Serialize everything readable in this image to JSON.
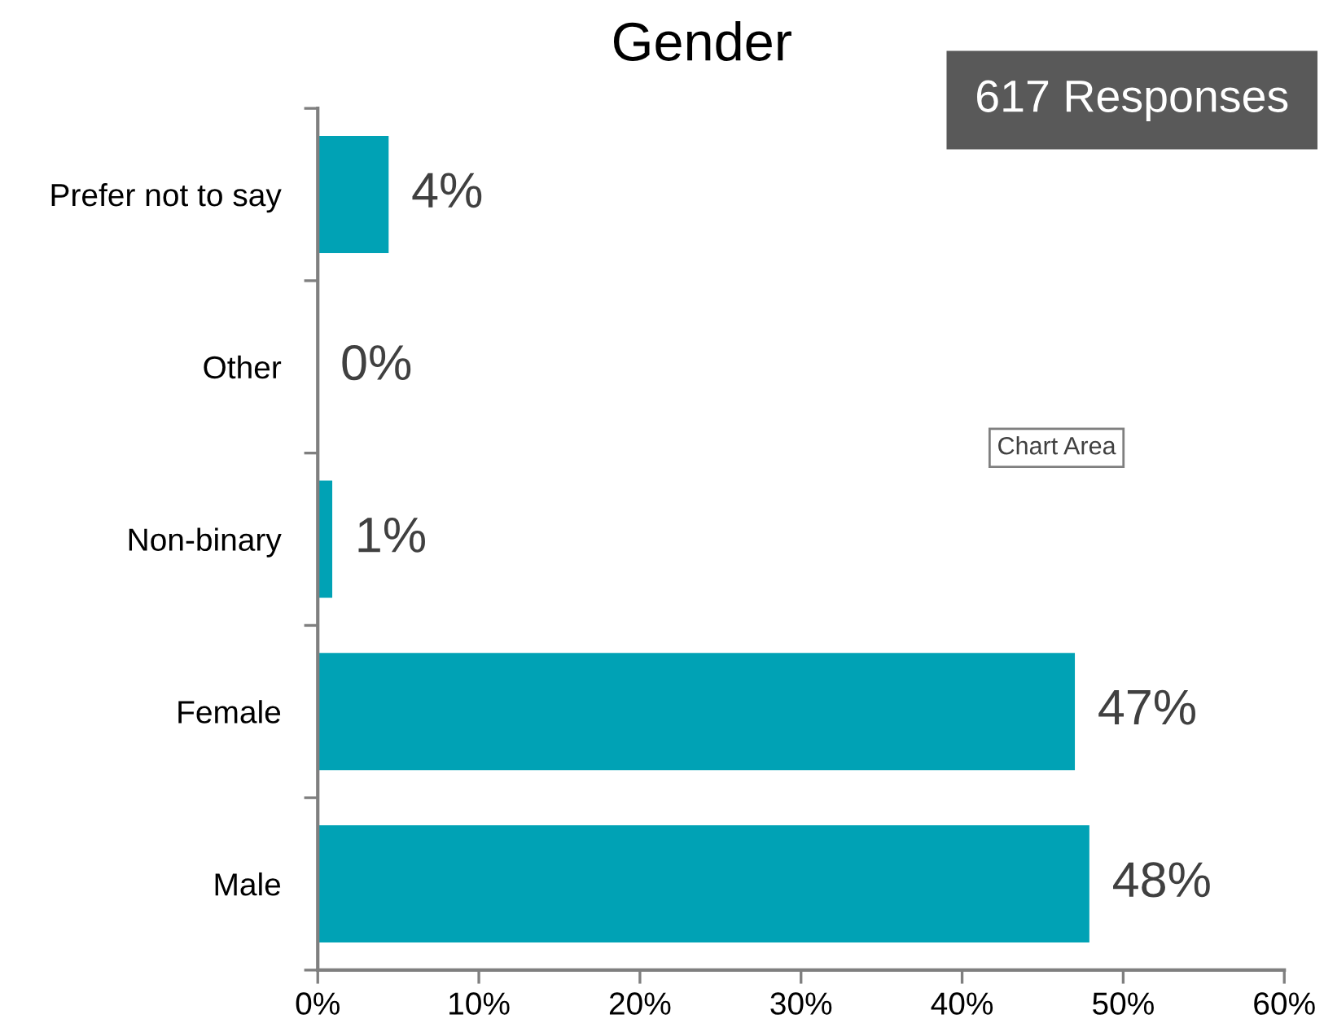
{
  "chart_data": {
    "type": "bar",
    "orientation": "horizontal",
    "title": "Gender",
    "categories": [
      "Prefer not to say",
      "Other",
      "Non-binary",
      "Female",
      "Male"
    ],
    "values": [
      4.4,
      0,
      0.9,
      47,
      47.9
    ],
    "value_labels": [
      "4%",
      "0%",
      "1%",
      "47%",
      "48%"
    ],
    "color": "#00a2b5",
    "xlim": [
      0,
      60
    ],
    "xticks": [
      {
        "value": 0,
        "label": "0%"
      },
      {
        "value": 10,
        "label": "10%"
      },
      {
        "value": 20,
        "label": "20%"
      },
      {
        "value": 30,
        "label": "30%"
      },
      {
        "value": 40,
        "label": "40%"
      },
      {
        "value": 50,
        "label": "50%"
      },
      {
        "value": 60,
        "label": "60%"
      }
    ],
    "grid": false,
    "legend": false,
    "annotations": [
      "617 Responses",
      "Chart Area"
    ]
  }
}
